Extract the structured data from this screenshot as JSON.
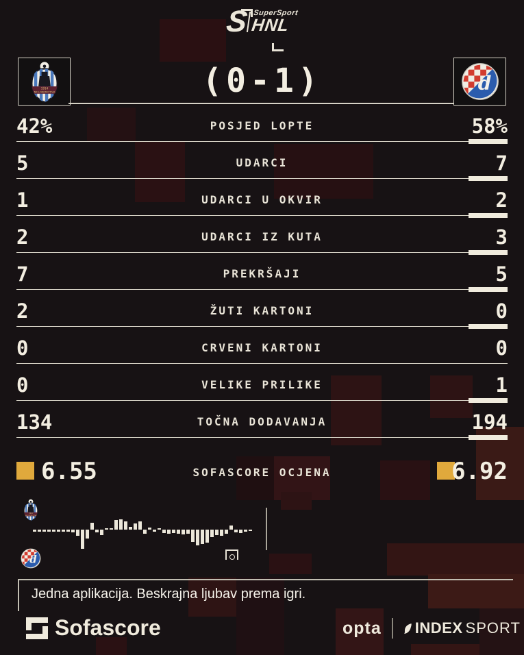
{
  "brand": {
    "prefix": "S",
    "top": "SuperSport",
    "name": "HNL"
  },
  "match": {
    "score": "(0-1)",
    "home_badge_text": "1914 NK LOKOMOTIVA",
    "away_badge_letter": "d"
  },
  "stats": {
    "rows": [
      {
        "label": "POSJED LOPTE",
        "home": "42%",
        "away": "58%",
        "advantage": "away"
      },
      {
        "label": "UDARCI",
        "home": "5",
        "away": "7",
        "advantage": "away"
      },
      {
        "label": "UDARCI U OKVIR",
        "home": "1",
        "away": "2",
        "advantage": "away"
      },
      {
        "label": "UDARCI IZ KUTA",
        "home": "2",
        "away": "3",
        "advantage": "away"
      },
      {
        "label": "PREKRŠAJI",
        "home": "7",
        "away": "5",
        "advantage": "away"
      },
      {
        "label": "ŽUTI KARTONI",
        "home": "2",
        "away": "0",
        "advantage": "away"
      },
      {
        "label": "CRVENI KARTONI",
        "home": "0",
        "away": "0",
        "advantage": "none"
      },
      {
        "label": "VELIKE PRILIKE",
        "home": "0",
        "away": "1",
        "advantage": "away"
      },
      {
        "label": "TOČNA DODAVANJA",
        "home": "134",
        "away": "194",
        "advantage": "away"
      }
    ]
  },
  "rating": {
    "label": "SOFASCORE OCJENA",
    "home": "6.55",
    "away": "6.92",
    "accent_color": "#e0a93c"
  },
  "chart_data": {
    "type": "bar",
    "subtype": "diverging-momentum-timeline",
    "home_side": "up",
    "away_side": "down",
    "ylim": [
      -100,
      100
    ],
    "bar_color": "#ece7da",
    "values": [
      -8,
      -8,
      -9,
      -8,
      -9,
      -9,
      -8,
      -9,
      -10,
      -25,
      -80,
      -38,
      28,
      -12,
      -22,
      5,
      6,
      40,
      43,
      35,
      12,
      26,
      35,
      -16,
      8,
      -8,
      6,
      -14,
      -16,
      -14,
      -16,
      -20,
      -16,
      -50,
      -65,
      -60,
      -55,
      -30,
      -22,
      -26,
      -16,
      18,
      -10,
      -14,
      -8,
      -5
    ],
    "goal_marker": {
      "team": "away",
      "bar_index": 41
    },
    "cursor": "end-of-play"
  },
  "tagline": "Jedna aplikacija. Beskrajna ljubav prema igri.",
  "footer": {
    "app_name": "Sofascore",
    "opta": "opta",
    "index": "INDEX",
    "sport": "SPORT"
  }
}
